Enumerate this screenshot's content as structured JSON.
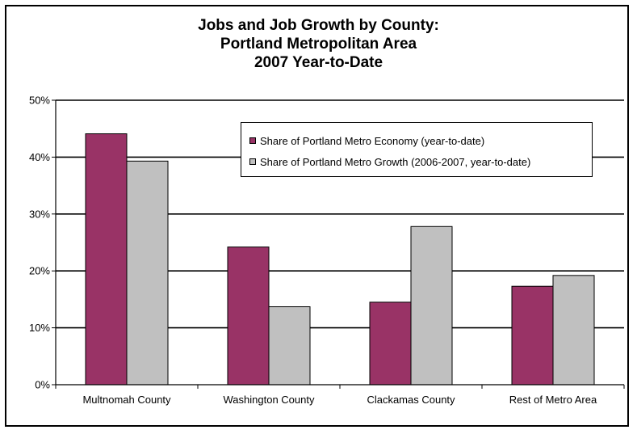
{
  "chart_data": {
    "type": "bar",
    "title_lines": [
      "Jobs and Job Growth by County:",
      "Portland Metropolitan Area",
      "2007 Year-to-Date"
    ],
    "categories": [
      "Multnomah County",
      "Washington County",
      "Clackamas County",
      "Rest of Metro Area"
    ],
    "series": [
      {
        "name": "Share of Portland Metro Economy (year-to-date)",
        "values": [
          44.1,
          24.2,
          14.5,
          17.3
        ],
        "color": "#993366"
      },
      {
        "name": "Share of Portland Metro Growth (2006-2007, year-to-date)",
        "values": [
          39.3,
          13.7,
          27.8,
          19.2
        ],
        "color": "#c0c0c0"
      }
    ],
    "y_ticks": [
      "0%",
      "10%",
      "20%",
      "30%",
      "40%",
      "50%"
    ],
    "ylim": [
      0,
      50
    ],
    "grid": true,
    "legend_position": "top-right"
  }
}
